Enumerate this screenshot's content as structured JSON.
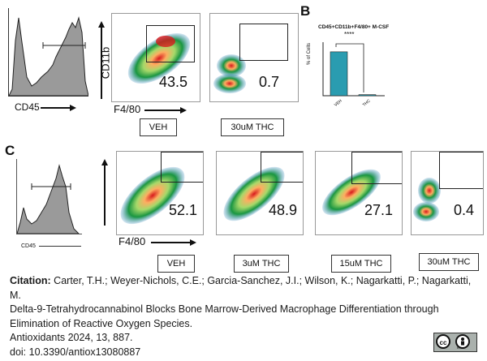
{
  "panel_b": {
    "letter": "B",
    "chart_title": "CD45+CD11b+F4/80+ M-CSF",
    "ylabel": "% of Cells",
    "significance": "****"
  },
  "panel_c": {
    "letter": "C"
  },
  "axes": {
    "cd45": "CD45",
    "cd11b": "CD11b",
    "f480": "F4/80"
  },
  "top_row": [
    {
      "label": "VEH",
      "percent": "43.5"
    },
    {
      "label": "30uM THC",
      "percent": "0.7"
    }
  ],
  "bottom_row": [
    {
      "label": "VEH",
      "percent": "52.1"
    },
    {
      "label": "3uM THC",
      "percent": "48.9"
    },
    {
      "label": "15uM THC",
      "percent": "27.1"
    },
    {
      "label": "30uM THC",
      "percent": "0.4"
    }
  ],
  "chart_data": {
    "type": "bar",
    "title": "CD45+CD11b+F4/80+ M-CSF",
    "categories": [
      "VEH",
      "THC"
    ],
    "values": [
      41,
      1
    ],
    "ylabel": "% of Cells",
    "xlabel": ""
  },
  "citation": {
    "label": "Citation:",
    "authors": "Carter, T.H.; Weyer-Nichols, C.E.; Garcia-Sanchez, J.I.; Wilson, K.; Nagarkatti, P.; Nagarkatti, M.",
    "title": "Delta-9-Tetrahydrocannabinol Blocks Bone Marrow-Derived Macrophage Differentiation through Elimination of Reactive Oxygen Species.",
    "journal": "Antioxidants 2024, 13, 887.",
    "doi": "doi: 10.3390/antiox13080887"
  },
  "license": {
    "badge": "cc",
    "by": "BY"
  },
  "colors": {
    "bar": "#2a9cb0",
    "gray_hist": "#9a9a9a"
  }
}
